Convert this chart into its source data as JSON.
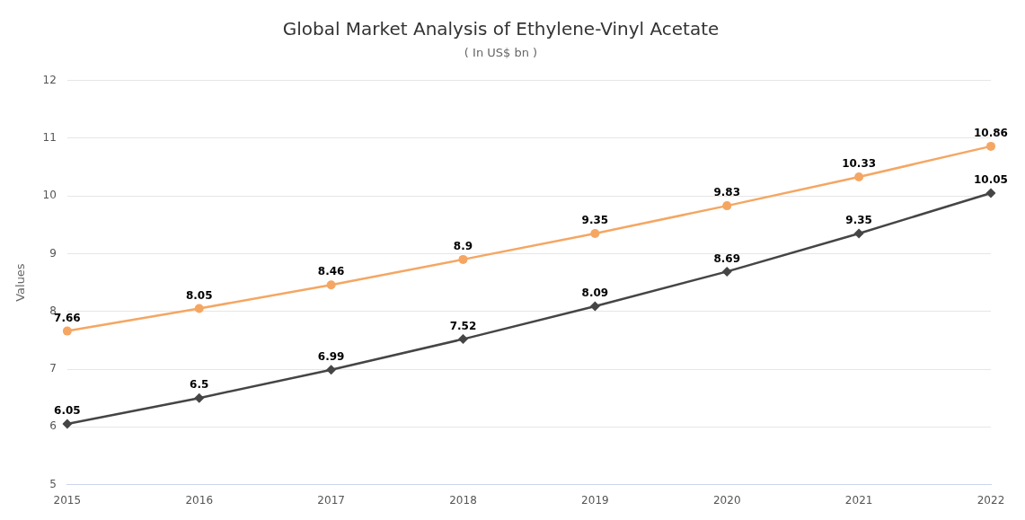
{
  "chart_data": {
    "type": "line",
    "title": "Global Market Analysis of Ethylene-Vinyl Acetate",
    "subtitle": "( In US$ bn )",
    "ylabel": "Values",
    "categories": [
      "2015",
      "2016",
      "2017",
      "2018",
      "2019",
      "2020",
      "2021",
      "2022"
    ],
    "series": [
      {
        "color": "#f5a662",
        "marker": "circle",
        "values": [
          7.66,
          8.05,
          8.46,
          8.9,
          9.35,
          9.83,
          10.33,
          10.86
        ]
      },
      {
        "color": "#454545",
        "marker": "diamond",
        "values": [
          6.05,
          6.5,
          6.99,
          7.52,
          8.09,
          8.69,
          9.35,
          10.05
        ]
      }
    ],
    "ylim": [
      5,
      12
    ],
    "yticks": [
      5,
      6,
      7,
      8,
      9,
      10,
      11,
      12
    ],
    "grid": "y",
    "data_labels": true,
    "line_style": "solid"
  }
}
